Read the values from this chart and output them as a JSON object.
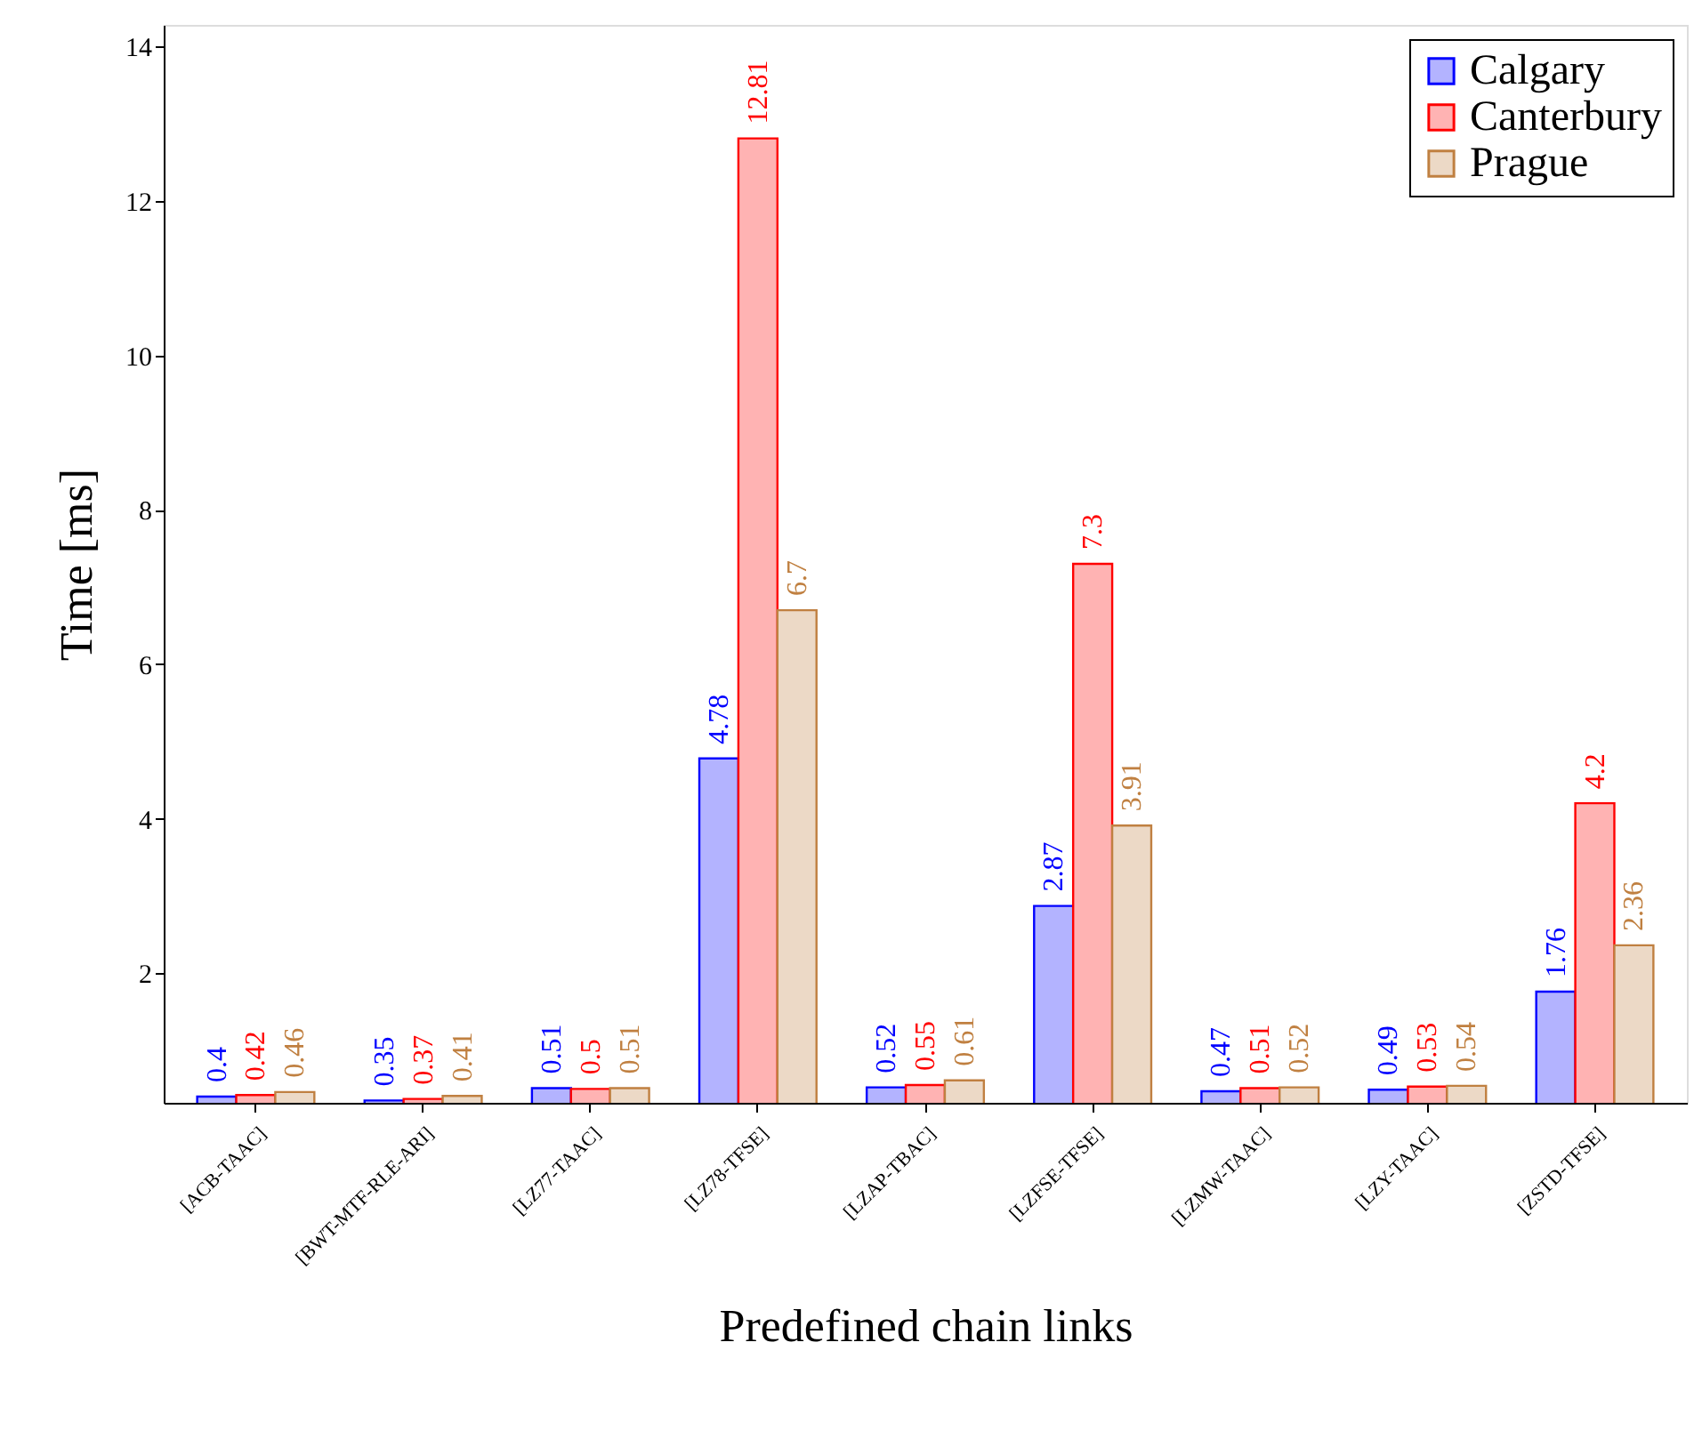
{
  "chart_data": {
    "type": "bar",
    "xlabel": "Predefined chain links",
    "ylabel": "Time [ms]",
    "categories": [
      "[ACB-TAAC]",
      "[BWT-MTF-RLE-ARI]",
      "[LZ77-TAAC]",
      "[LZ78-TFSE]",
      "[LZAP-TBAC]",
      "[LZFSE-TFSE]",
      "[LZMW-TAAC]",
      "[LZY-TAAC]",
      "[ZSTD-TFSE]"
    ],
    "series": [
      {
        "name": "Calgary",
        "color": "#b3b3ff",
        "values": [
          0.4,
          0.35,
          0.51,
          4.78,
          0.52,
          2.87,
          0.47,
          0.49,
          1.76
        ]
      },
      {
        "name": "Canterbury",
        "color": "#ffb3b3",
        "values": [
          0.42,
          0.37,
          0.5,
          12.81,
          0.55,
          7.3,
          0.51,
          0.53,
          4.2
        ]
      },
      {
        "name": "Prague",
        "color": "#ecd9c6",
        "values": [
          0.46,
          0.41,
          0.51,
          6.7,
          0.61,
          3.91,
          0.52,
          0.54,
          2.36
        ]
      }
    ],
    "ylim": [
      0.32,
      14.28
    ],
    "yticks": [
      2,
      4,
      6,
      8,
      10,
      12,
      14
    ],
    "data_labels": true,
    "grid": false,
    "legend": "top right"
  }
}
